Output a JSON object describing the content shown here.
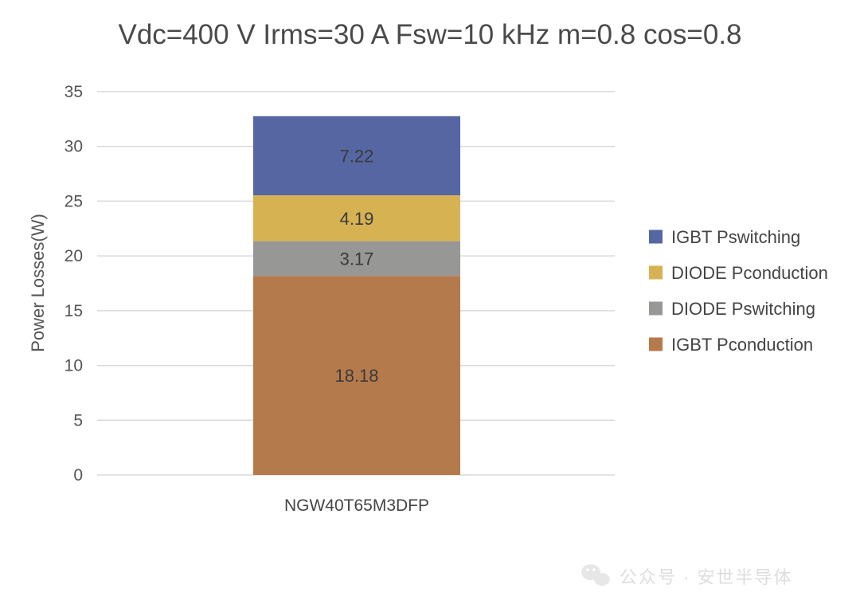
{
  "chart_data": {
    "type": "bar",
    "stacked": true,
    "title": "Vdc=400 V Irms=30 A Fsw=10 kHz m=0.8 cos=0.8",
    "xlabel": "",
    "ylabel": "Power Losses(W)",
    "ylim": [
      0,
      35
    ],
    "yticks": [
      0,
      5,
      10,
      15,
      20,
      25,
      30,
      35
    ],
    "grid": true,
    "legend_position": "right",
    "categories": [
      "NGW40T65M3DFP"
    ],
    "series": [
      {
        "name": "IGBT Pconduction",
        "values": [
          18.18
        ],
        "color": "#b57a4c"
      },
      {
        "name": "DIODE Pswitching",
        "values": [
          3.17
        ],
        "color": "#979796"
      },
      {
        "name": "DIODE Pconduction",
        "values": [
          4.19
        ],
        "color": "#d6b253"
      },
      {
        "name": "IGBT Pswitching",
        "values": [
          7.22
        ],
        "color": "#5566a3"
      }
    ],
    "legend_order": [
      "IGBT Pswitching",
      "DIODE Pconduction",
      "DIODE Pswitching",
      "IGBT Pconduction"
    ]
  },
  "watermark": {
    "text": "公众号 · 安世半导体",
    "icon": "wechat-icon"
  }
}
